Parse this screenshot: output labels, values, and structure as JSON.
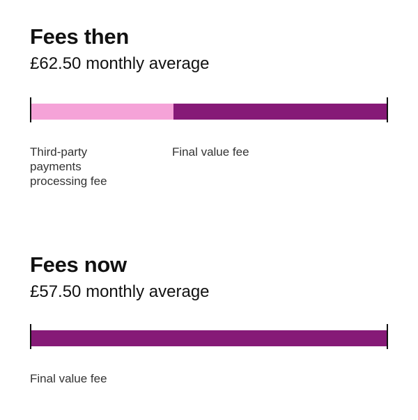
{
  "chart_data": [
    {
      "type": "bar",
      "orientation": "horizontal-stacked",
      "title": "Fees then",
      "subtitle": "£62.50 monthly average",
      "total": 62.5,
      "segments": [
        {
          "name": "Third-party payments processing fee",
          "label_lines": [
            "Third-party",
            "payments",
            "processing fee"
          ],
          "value": 25.0,
          "color": "#f5a3d8"
        },
        {
          "name": "Final value fee",
          "label_lines": [
            "Final value fee"
          ],
          "value": 37.5,
          "color": "#861a77"
        }
      ]
    },
    {
      "type": "bar",
      "orientation": "horizontal-stacked",
      "title": "Fees now",
      "subtitle": "£57.50 monthly average",
      "total": 57.5,
      "segments": [
        {
          "name": "Final value fee",
          "label_lines": [
            "Final value fee"
          ],
          "value": 57.5,
          "color": "#861a77"
        }
      ]
    }
  ]
}
